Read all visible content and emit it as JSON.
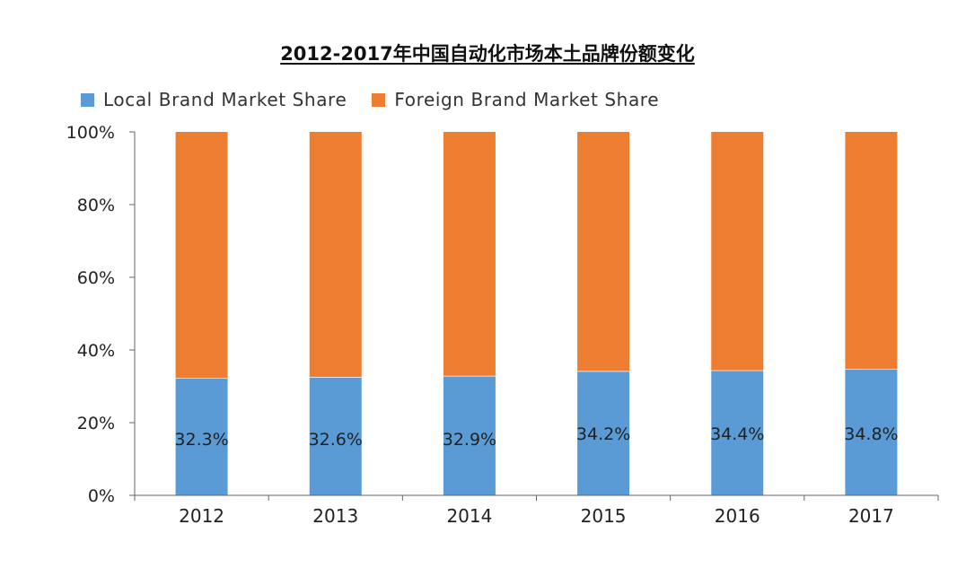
{
  "chart_data": {
    "type": "bar",
    "stacked": true,
    "title": "2012-2017年中国自动化市场本土品牌份额变化",
    "categories": [
      "2012",
      "2013",
      "2014",
      "2015",
      "2016",
      "2017"
    ],
    "series": [
      {
        "name": "Local Brand Market Share",
        "color": "#5b9bd5",
        "values": [
          32.3,
          32.6,
          32.9,
          34.2,
          34.4,
          34.8
        ],
        "labels": [
          "32.3%",
          "32.6%",
          "32.9%",
          "34.2%",
          "34.4%",
          "34.8%"
        ]
      },
      {
        "name": "Foreign Brand Market Share",
        "color": "#ed7d31",
        "values": [
          67.7,
          67.4,
          67.1,
          65.8,
          65.6,
          65.2
        ]
      }
    ],
    "ylim": [
      0,
      100
    ],
    "yticks": [
      {
        "value": 0,
        "label": "0%"
      },
      {
        "value": 20,
        "label": "20%"
      },
      {
        "value": 40,
        "label": "40%"
      },
      {
        "value": 60,
        "label": "60%"
      },
      {
        "value": 80,
        "label": "80%"
      },
      {
        "value": 100,
        "label": "100%"
      }
    ],
    "xlabel": "",
    "ylabel": "",
    "grid": false,
    "legend_position": "top"
  }
}
